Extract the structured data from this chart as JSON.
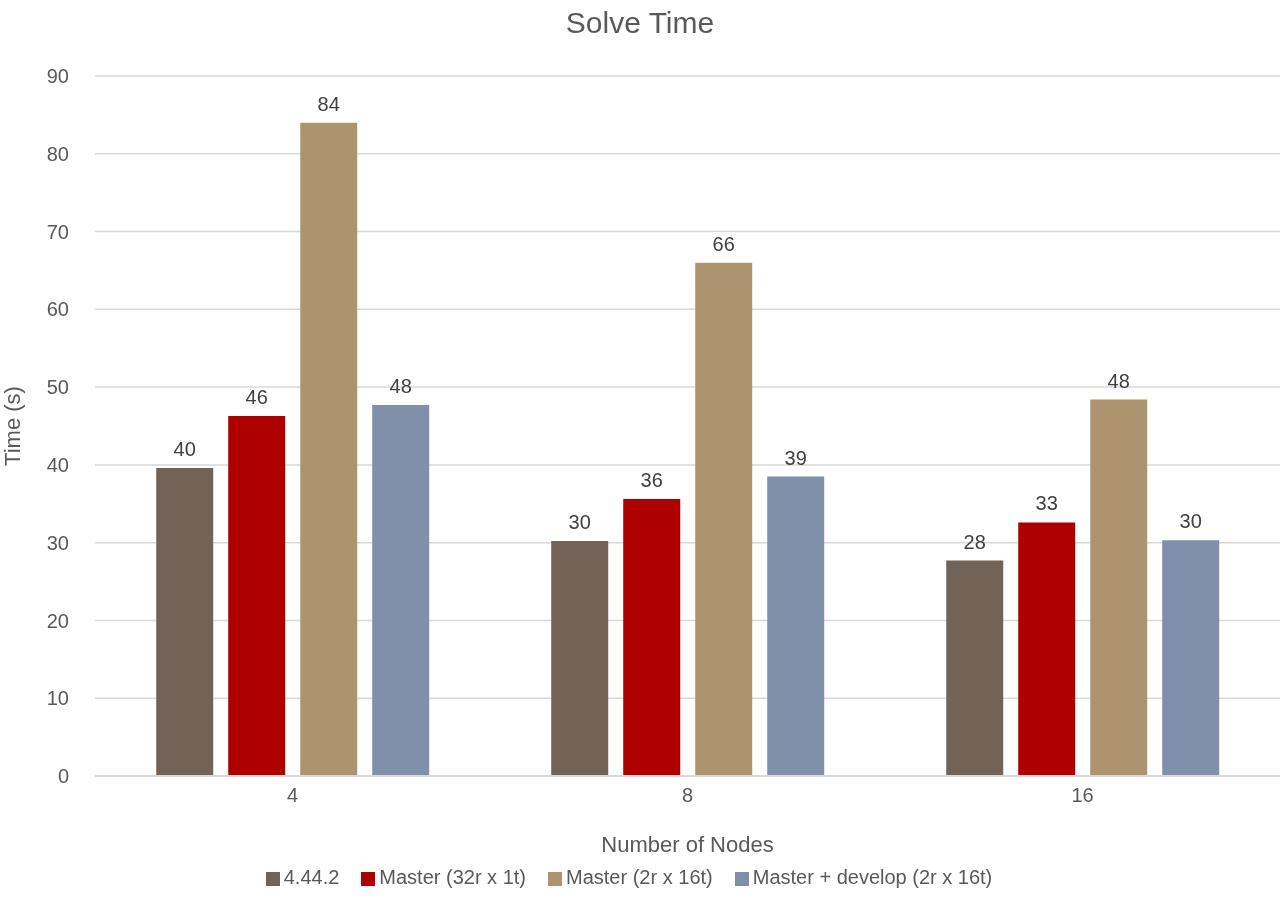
{
  "chart_data": {
    "type": "bar",
    "title": "Solve Time",
    "xlabel": "Number of Nodes",
    "ylabel": "Time (s)",
    "categories": [
      "4",
      "8",
      "16"
    ],
    "series": [
      {
        "name": "4.44.2",
        "color": "#736357",
        "values": [
          39.6,
          30.2,
          27.7
        ],
        "value_labels": [
          "40",
          "30",
          "28"
        ]
      },
      {
        "name": "Master (32r x 1t)",
        "color": "#af0000",
        "values": [
          46.3,
          35.6,
          32.6
        ],
        "value_labels": [
          "46",
          "36",
          "33"
        ]
      },
      {
        "name": "Master (2r x 16t)",
        "color": "#ad946f",
        "values": [
          84,
          66,
          48.4
        ],
        "value_labels": [
          "84",
          "66",
          "48"
        ]
      },
      {
        "name": "Master + develop (2r x 16t)",
        "color": "#8190aa",
        "values": [
          47.7,
          38.5,
          30.3
        ],
        "value_labels": [
          "48",
          "39",
          "30"
        ]
      }
    ],
    "ylim": [
      0,
      90
    ],
    "yticks": [
      0,
      10,
      20,
      30,
      40,
      50,
      60,
      70,
      80,
      90
    ],
    "grid": "y",
    "legend": "bottom"
  }
}
